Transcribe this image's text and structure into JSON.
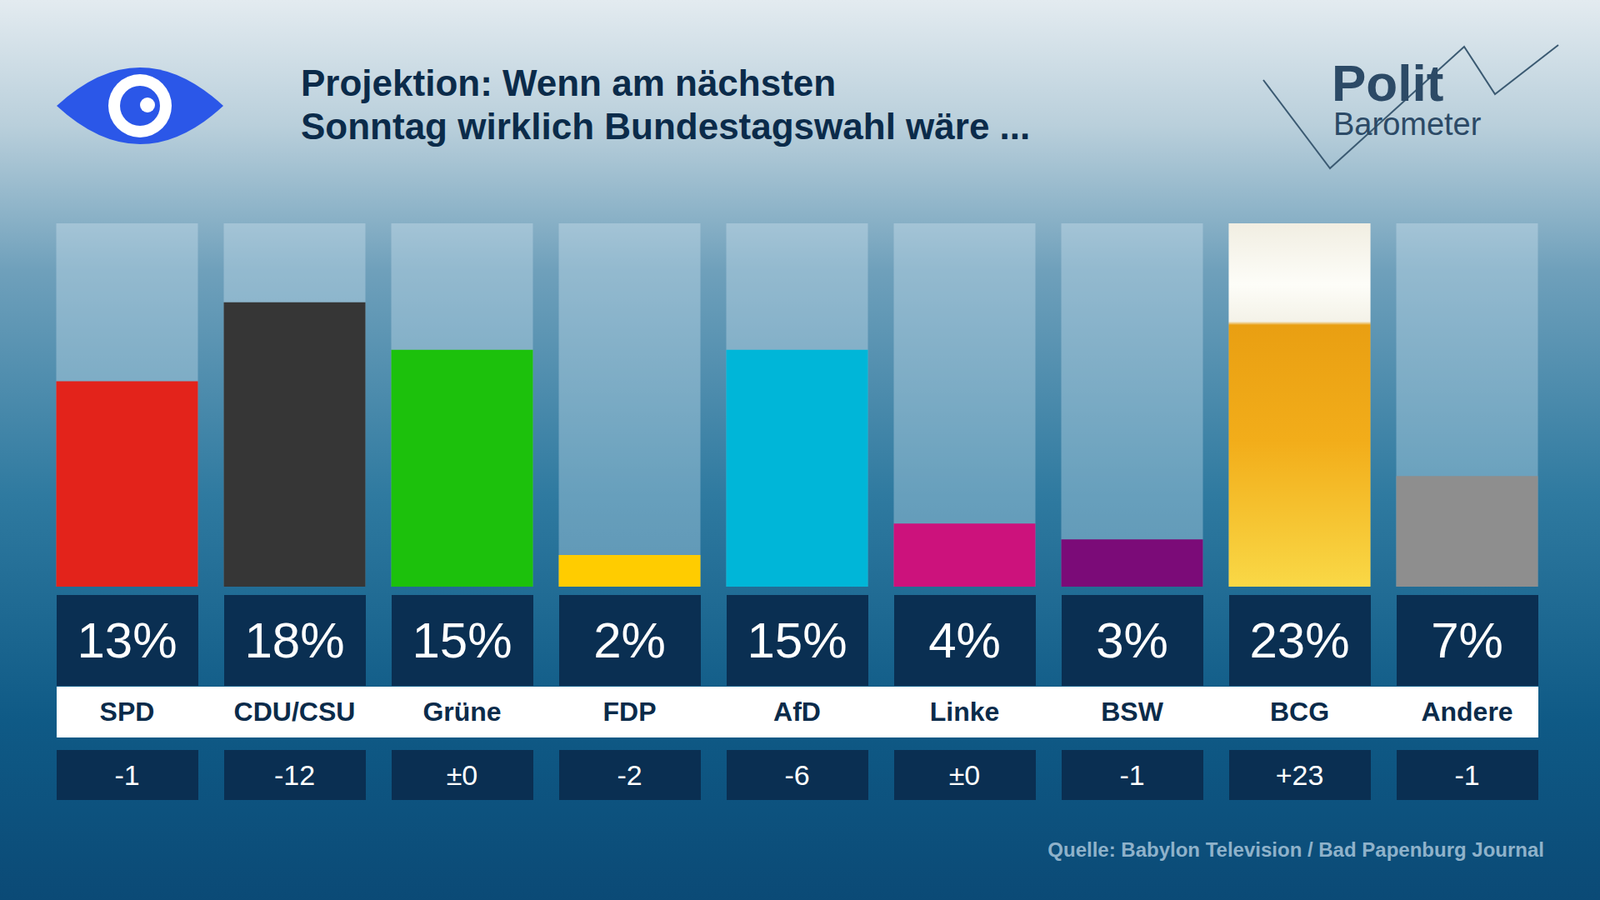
{
  "chart_data": {
    "type": "bar",
    "title": "Projektion: Wenn am nächsten\nSonntag wirklich Bundestagswahl wäre ...",
    "brand": [
      "Polit",
      "Barometer"
    ],
    "source": "Quelle: Babylon Television / Bad Papenburg Journal",
    "categories": [
      "SPD",
      "CDU/CSU",
      "Grüne",
      "FDP",
      "AfD",
      "Linke",
      "BSW",
      "BCG",
      "Andere"
    ],
    "values": [
      13,
      18,
      15,
      2,
      15,
      4,
      3,
      23,
      7
    ],
    "value_labels": [
      "13%",
      "18%",
      "15%",
      "2%",
      "15%",
      "4%",
      "3%",
      "23%",
      "7%"
    ],
    "changes": [
      "-1",
      "-12",
      "±0",
      "-2",
      "-6",
      "±0",
      "-1",
      "+23",
      "-1"
    ],
    "colors": [
      "#e3231b",
      "#363636",
      "#1cc10c",
      "#ffcc00",
      "#00b6d8",
      "#cc127c",
      "#7b0b78",
      "#f2ad1a",
      "#8e8e8e"
    ],
    "ylim": [
      0,
      23
    ],
    "grid": false,
    "data_labels": true,
    "tick_labels": false
  }
}
